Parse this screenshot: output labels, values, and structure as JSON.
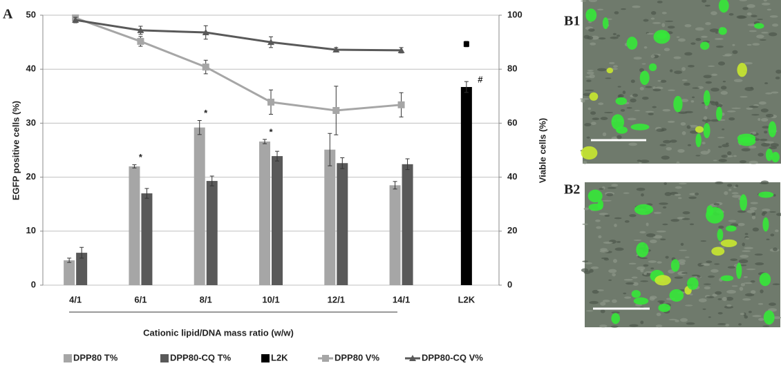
{
  "chart_data": {
    "type": "combo",
    "categories": [
      "4/1",
      "6/1",
      "8/1",
      "10/1",
      "12/1",
      "14/1",
      "L2K"
    ],
    "xlabel": "Cationic lipid/DNA mass ratio (w/w)",
    "ylabel": "EGFP positive cells (%)",
    "y2label": "Viable cells (%)",
    "ylim": [
      0,
      50
    ],
    "yticks": [
      0,
      10,
      20,
      30,
      40,
      50
    ],
    "y2lim": [
      0,
      100
    ],
    "y2ticks": [
      0,
      20,
      40,
      60,
      80,
      100
    ],
    "grid": true,
    "legend": "bottom",
    "series": [
      {
        "name": "DPP80 T%",
        "type": "bar",
        "color": "#a6a6a6",
        "values": [
          4.6,
          22.0,
          29.2,
          26.6,
          25.1,
          18.5,
          null
        ],
        "errors": [
          0.4,
          0.3,
          1.3,
          0.4,
          3.0,
          0.7,
          null
        ]
      },
      {
        "name": "DPP80-CQ T%",
        "type": "bar",
        "color": "#595959",
        "values": [
          6.0,
          17.0,
          19.3,
          23.9,
          22.6,
          22.4,
          null
        ],
        "errors": [
          1.0,
          0.9,
          0.9,
          0.9,
          1.0,
          1.0,
          null
        ]
      },
      {
        "name": "L2K",
        "type": "bar",
        "color": "#000000",
        "values": [
          null,
          null,
          null,
          null,
          null,
          null,
          36.7
        ],
        "errors": [
          null,
          null,
          null,
          null,
          null,
          null,
          1.0
        ],
        "viability": [
          null,
          null,
          null,
          null,
          null,
          null,
          89.3
        ],
        "viability_errors": [
          null,
          null,
          null,
          null,
          null,
          null,
          1.0
        ]
      },
      {
        "name": "DPP80 V%",
        "type": "line",
        "axis": "y2",
        "marker": "square",
        "color": "#a6a6a6",
        "values": [
          99.0,
          90.3,
          80.8,
          67.8,
          64.7,
          66.8,
          null
        ],
        "errors": [
          0.5,
          1.8,
          2.5,
          4.5,
          9.0,
          4.5,
          null
        ]
      },
      {
        "name": "DPP80-CQ V%",
        "type": "line",
        "axis": "y2",
        "marker": "triangle",
        "color": "#595959",
        "values": [
          98.2,
          94.4,
          93.6,
          90.0,
          87.2,
          87.0,
          null
        ],
        "errors": [
          1.0,
          1.5,
          2.5,
          2.0,
          0.8,
          1.0,
          null
        ]
      }
    ],
    "annotations": [
      {
        "text": "*",
        "category": "6/1"
      },
      {
        "text": "*",
        "category": "8/1"
      },
      {
        "text": "*",
        "category": "10/1"
      },
      {
        "text": "#",
        "category": "L2K"
      }
    ]
  },
  "panels": {
    "a": "A",
    "b1": "B1",
    "b2": "B2"
  }
}
